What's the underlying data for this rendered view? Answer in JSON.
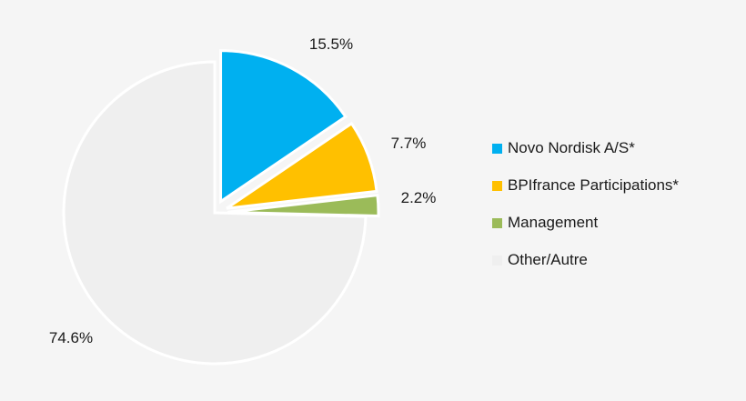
{
  "chart_data": {
    "type": "pie",
    "title": "",
    "legend_position": "right",
    "slices": [
      {
        "name": "Novo Nordisk A/S*",
        "value": 15.5,
        "label": "15.5%",
        "color": "#00b0f0",
        "exploded": true
      },
      {
        "name": "BPIfrance Participations*",
        "value": 7.7,
        "label": "7.7%",
        "color": "#ffc000",
        "exploded": true
      },
      {
        "name": "Management",
        "value": 2.2,
        "label": "2.2%",
        "color": "#9bbb59",
        "exploded": true
      },
      {
        "name": "Other/Autre",
        "value": 74.6,
        "label": "74.6%",
        "color": "#efefef",
        "exploded": false
      }
    ]
  }
}
